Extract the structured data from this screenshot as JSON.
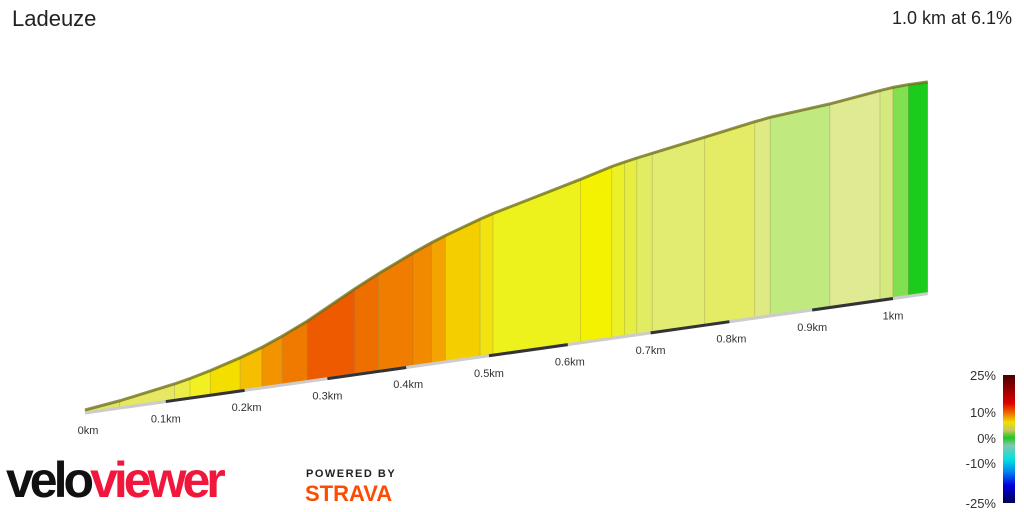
{
  "header": {
    "title": "Ladeuze",
    "summary": "1.0 km at 6.1%"
  },
  "legend": {
    "labels": [
      "25%",
      "10%",
      "0%",
      "-10%",
      "-25%"
    ]
  },
  "branding": {
    "logo_velo": "velo",
    "logo_viewer": "viewer",
    "powered_by": "POWERED BY",
    "strava": "STRAVA"
  },
  "chart_data": {
    "type": "area",
    "title": "Ladeuze",
    "xlabel": "",
    "ylabel": "",
    "x_ticks": [
      "0km",
      "0.1km",
      "0.2km",
      "0.3km",
      "0.4km",
      "0.5km",
      "0.6km",
      "0.7km",
      "0.8km",
      "0.9km",
      "1km"
    ],
    "x_tick_values": [
      0,
      0.1,
      0.2,
      0.3,
      0.4,
      0.5,
      0.6,
      0.7,
      0.8,
      0.9,
      1.0
    ],
    "segments": [
      {
        "start_km": 0.0,
        "end_km": 0.043,
        "grade": 3,
        "color": "#dfe46a"
      },
      {
        "start_km": 0.043,
        "end_km": 0.111,
        "grade": 4,
        "color": "#e6e864"
      },
      {
        "start_km": 0.111,
        "end_km": 0.13,
        "grade": 5,
        "color": "#ecec4a"
      },
      {
        "start_km": 0.13,
        "end_km": 0.155,
        "grade": 6,
        "color": "#f2f020"
      },
      {
        "start_km": 0.155,
        "end_km": 0.192,
        "grade": 7,
        "color": "#f4de00"
      },
      {
        "start_km": 0.192,
        "end_km": 0.219,
        "grade": 8,
        "color": "#f5bf00"
      },
      {
        "start_km": 0.219,
        "end_km": 0.244,
        "grade": 10,
        "color": "#f29400"
      },
      {
        "start_km": 0.244,
        "end_km": 0.275,
        "grade": 11,
        "color": "#f07a00"
      },
      {
        "start_km": 0.275,
        "end_km": 0.334,
        "grade": 13,
        "color": "#ee5a00"
      },
      {
        "start_km": 0.334,
        "end_km": 0.363,
        "grade": 12,
        "color": "#ef6e00"
      },
      {
        "start_km": 0.363,
        "end_km": 0.406,
        "grade": 11,
        "color": "#f07c00"
      },
      {
        "start_km": 0.406,
        "end_km": 0.429,
        "grade": 10,
        "color": "#f28a00"
      },
      {
        "start_km": 0.429,
        "end_km": 0.446,
        "grade": 9,
        "color": "#f4a400"
      },
      {
        "start_km": 0.446,
        "end_km": 0.489,
        "grade": 8,
        "color": "#f5ce00"
      },
      {
        "start_km": 0.489,
        "end_km": 0.505,
        "grade": 7,
        "color": "#f2e210"
      },
      {
        "start_km": 0.505,
        "end_km": 0.613,
        "grade": 6,
        "color": "#eef21c"
      },
      {
        "start_km": 0.613,
        "end_km": 0.652,
        "grade": 6.5,
        "color": "#f4f200"
      },
      {
        "start_km": 0.652,
        "end_km": 0.668,
        "grade": 5,
        "color": "#ecf028"
      },
      {
        "start_km": 0.668,
        "end_km": 0.683,
        "grade": 4.5,
        "color": "#e6ee44"
      },
      {
        "start_km": 0.683,
        "end_km": 0.702,
        "grade": 4,
        "color": "#e2ec62"
      },
      {
        "start_km": 0.702,
        "end_km": 0.767,
        "grade": 4,
        "color": "#e2ec70"
      },
      {
        "start_km": 0.767,
        "end_km": 0.829,
        "grade": 4,
        "color": "#e4ec66"
      },
      {
        "start_km": 0.829,
        "end_km": 0.848,
        "grade": 3.5,
        "color": "#dfea84"
      },
      {
        "start_km": 0.848,
        "end_km": 0.922,
        "grade": 2,
        "color": "#c0ea80"
      },
      {
        "start_km": 0.922,
        "end_km": 0.984,
        "grade": 3,
        "color": "#e0ea92"
      },
      {
        "start_km": 0.984,
        "end_km": 1.0,
        "grade": 2.5,
        "color": "#d4ea80"
      },
      {
        "start_km": 1.0,
        "end_km": 1.019,
        "grade": 1,
        "color": "#80e050"
      },
      {
        "start_km": 1.019,
        "end_km": 1.043,
        "grade": 0,
        "color": "#1ccc1c"
      }
    ]
  }
}
